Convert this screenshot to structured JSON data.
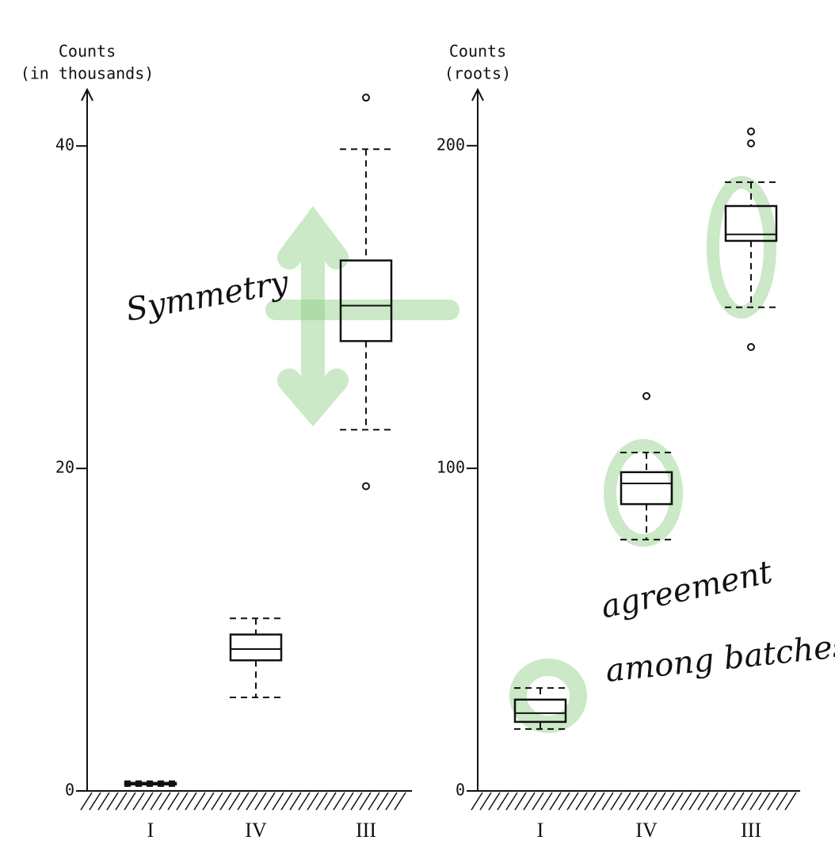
{
  "chart_data": [
    {
      "type": "box",
      "y_label": [
        "Counts",
        "(in thousands)"
      ],
      "annotations": [
        "Symmetry"
      ],
      "categories": [
        "I",
        "IV",
        "III"
      ],
      "boxes": [
        {
          "whisker_low": 0.3,
          "q1": 0.4,
          "median": 0.5,
          "q3": 0.5,
          "whisker_high": 0.6,
          "outliers": []
        },
        {
          "whisker_low": 5.8,
          "q1": 8.1,
          "median": 8.8,
          "q3": 9.7,
          "whisker_high": 10.7,
          "outliers": []
        },
        {
          "whisker_low": 22.4,
          "q1": 27.9,
          "median": 30.1,
          "q3": 32.9,
          "whisker_high": 39.8,
          "outliers": [
            43.0,
            18.9
          ]
        }
      ],
      "color": "#111111",
      "ylim": [
        0,
        43.5
      ],
      "yticks": [
        0,
        20,
        40
      ]
    },
    {
      "type": "box",
      "y_label": [
        "Counts",
        "(roots)"
      ],
      "annotations": [
        "agreement",
        "among batches"
      ],
      "categories": [
        "I",
        "IV",
        "III"
      ],
      "boxes": [
        {
          "whisker_low": 19.2,
          "q1": 21.4,
          "median": 24.1,
          "q3": 28.3,
          "whisker_high": 31.9,
          "outliers": []
        },
        {
          "whisker_low": 77.9,
          "q1": 88.9,
          "median": 95.3,
          "q3": 98.8,
          "whisker_high": 104.9,
          "outliers": [
            122.4
          ]
        },
        {
          "whisker_low": 149.9,
          "q1": 170.5,
          "median": 172.5,
          "q3": 181.3,
          "whisker_high": 188.7,
          "outliers": [
            204.4,
            200.7,
            137.6
          ]
        }
      ],
      "color": "#111111",
      "ylim": [
        0,
        217.4
      ],
      "yticks": [
        0,
        100,
        200
      ]
    }
  ]
}
